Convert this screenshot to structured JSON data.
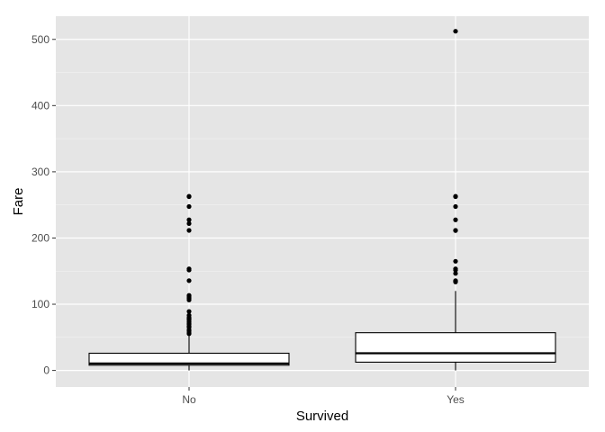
{
  "chart_data": {
    "type": "boxplot",
    "xlabel": "Survived",
    "ylabel": "Fare",
    "ylim": [
      -25,
      535
    ],
    "yticks": [
      0,
      100,
      200,
      300,
      400,
      500
    ],
    "yticks_minor": [
      50,
      150,
      250,
      350,
      450
    ],
    "categories": [
      "No",
      "Yes"
    ],
    "grid": true,
    "legend": "none",
    "colors": {
      "panel": "#e5e5e5",
      "grid_major": "#ffffff",
      "grid_minor": "#f2f2f2",
      "box_fill": "#ffffff",
      "box_stroke": "#000000",
      "outlier": "#000000"
    },
    "boxes": [
      {
        "category": "No",
        "whisker_low": 0,
        "q1": 7.9,
        "median": 10.5,
        "q3": 26,
        "whisker_high": 52,
        "outliers": [
          55.4,
          56.5,
          59.4,
          61.2,
          65,
          66.6,
          69.6,
          71,
          73.5,
          76.3,
          77.3,
          79.2,
          79.7,
          83.2,
          89.1,
          106.4,
          108.9,
          110.9,
          113.3,
          135.6,
          151.6,
          153.5,
          211.5,
          221.8,
          227.5,
          247.5,
          262.4,
          263
        ]
      },
      {
        "category": "Yes",
        "whisker_low": 0,
        "q1": 12.5,
        "median": 26,
        "q3": 57,
        "whisker_high": 120,
        "outliers": [
          133.7,
          134.5,
          135.6,
          146.5,
          151.6,
          153.5,
          164.9,
          211.3,
          211.5,
          227.5,
          247.5,
          262.4,
          263,
          512.3
        ]
      }
    ]
  }
}
